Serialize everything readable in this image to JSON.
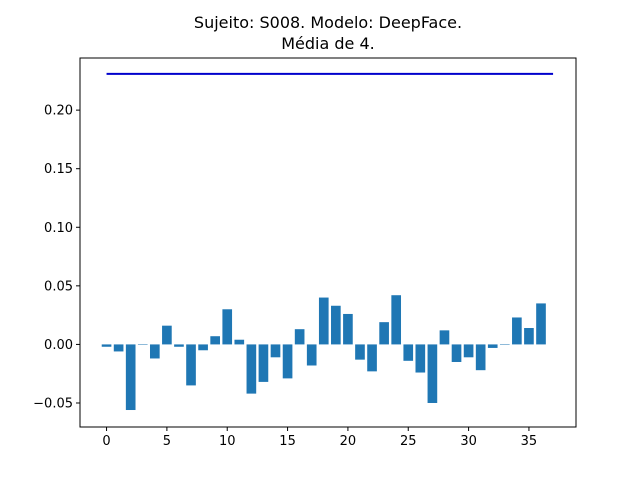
{
  "chart_data": {
    "type": "bar",
    "title": [
      "Sujeito: S008. Modelo: DeepFace.",
      "Média de 4."
    ],
    "xlabel": "",
    "ylabel": "",
    "x": [
      0,
      1,
      2,
      3,
      4,
      5,
      6,
      7,
      8,
      9,
      10,
      11,
      12,
      13,
      14,
      15,
      16,
      17,
      18,
      19,
      20,
      21,
      22,
      23,
      24,
      25,
      26,
      27,
      28,
      29,
      30,
      31,
      32,
      33,
      34,
      35,
      36
    ],
    "values": [
      -0.002,
      -0.006,
      -0.056,
      0.0,
      -0.012,
      0.016,
      -0.002,
      -0.035,
      -0.005,
      0.007,
      0.03,
      0.004,
      -0.042,
      -0.032,
      -0.011,
      -0.029,
      0.013,
      -0.018,
      0.04,
      0.033,
      0.026,
      -0.013,
      -0.023,
      0.019,
      0.042,
      -0.014,
      -0.024,
      -0.05,
      0.012,
      -0.015,
      -0.011,
      -0.022,
      -0.003,
      0.0,
      0.023,
      0.014,
      0.035
    ],
    "bar_color": "#1f77b4",
    "reference_line": {
      "y": 0.231,
      "x_range": [
        0,
        37
      ],
      "color": "#0000cc"
    },
    "xlim": [
      -2.2,
      38.9
    ],
    "ylim": [
      -0.0705,
      0.2445
    ],
    "xticks": [
      0,
      5,
      10,
      15,
      20,
      25,
      30,
      35
    ],
    "xtick_labels": [
      "0",
      "5",
      "10",
      "15",
      "20",
      "25",
      "30",
      "35"
    ],
    "yticks": [
      -0.05,
      0.0,
      0.05,
      0.1,
      0.15,
      0.2
    ],
    "ytick_labels": [
      "−0.05",
      "0.00",
      "0.05",
      "0.10",
      "0.15",
      "0.20"
    ],
    "grid": false
  }
}
